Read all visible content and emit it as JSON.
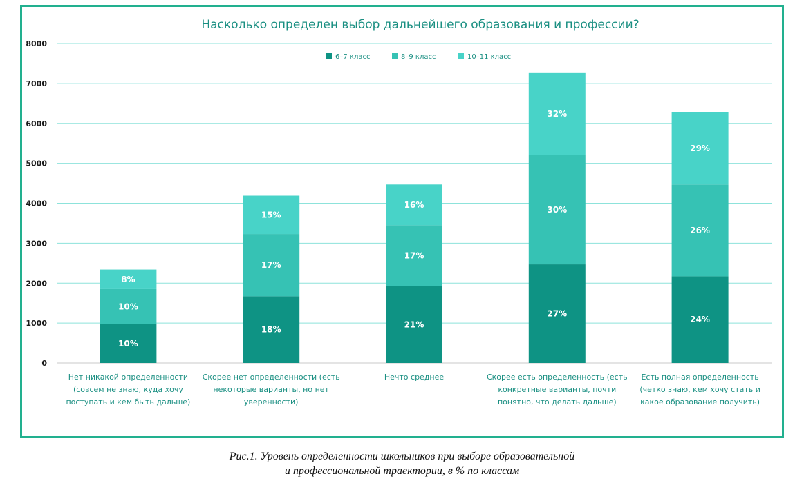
{
  "chart_data": {
    "type": "bar",
    "stacked": true,
    "title": "Насколько определен выбор дальнейшего образования и профессии?",
    "ylim": [
      0,
      8000
    ],
    "yticks": [
      0,
      1000,
      2000,
      3000,
      4000,
      5000,
      6000,
      7000,
      8000
    ],
    "grid": true,
    "legend_position": "top",
    "categories": [
      [
        "Нет никакой определенности",
        "(совсем не знаю, куда хочу",
        "поступать и кем быть дальше)"
      ],
      [
        "Скорее нет определенности (есть",
        "некоторые варианты, но нет",
        "уверенности)"
      ],
      [
        "Нечто среднее"
      ],
      [
        "Скорее есть определенность (есть",
        "конкретные варианты, почти",
        "понятно, что делать дальше)"
      ],
      [
        "Есть полная определенность",
        "(четко знаю, кем хочу стать  и",
        "какое образование получить)"
      ]
    ],
    "series": [
      {
        "name": "6–7 класс",
        "color": "#0e9384",
        "values": [
          970,
          1670,
          1920,
          2470,
          2170
        ],
        "labels": [
          "10%",
          "18%",
          "21%",
          "27%",
          "24%"
        ]
      },
      {
        "name": "8–9 класс",
        "color": "#36c2b4",
        "values": [
          880,
          1560,
          1530,
          2740,
          2300
        ],
        "labels": [
          "10%",
          "17%",
          "17%",
          "30%",
          "26%"
        ]
      },
      {
        "name": "10–11 класс",
        "color": "#48d3c8",
        "values": [
          490,
          960,
          1020,
          2050,
          1810
        ],
        "labels": [
          "8%",
          "15%",
          "16%",
          "32%",
          "29%"
        ]
      }
    ]
  },
  "caption": {
    "line1": "Рис.1. Уровень определенности школьников при выборе образовательной",
    "line2": "и профессиональной траектории, в % по классам"
  }
}
